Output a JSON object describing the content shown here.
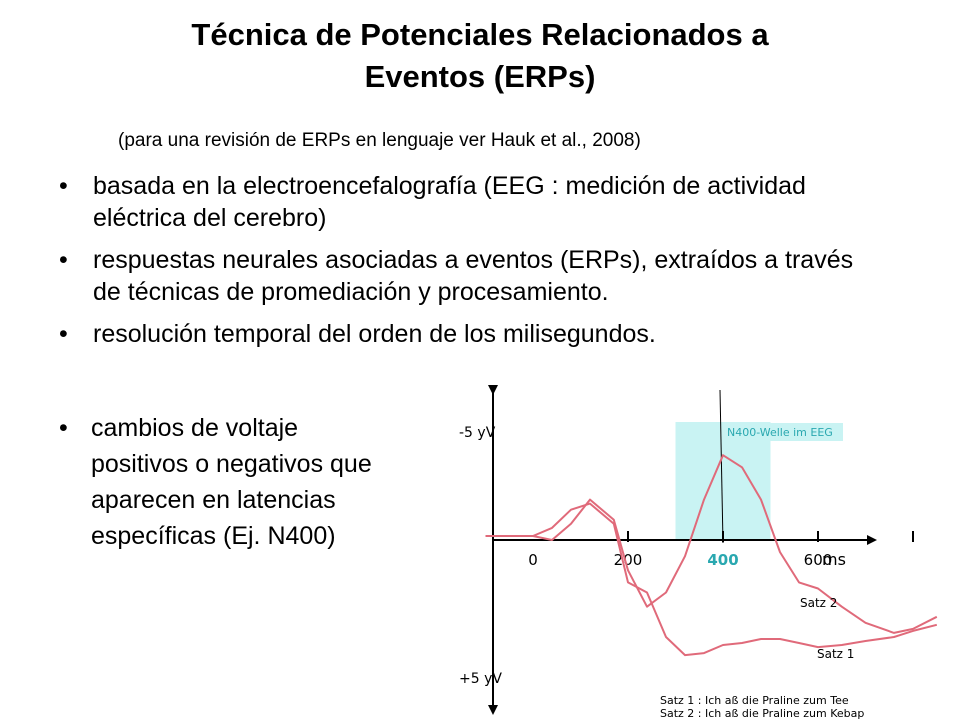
{
  "slide": {
    "title_line1": "Técnica de Potenciales Relacionados a",
    "title_line2": "Eventos (ERPs)",
    "subtitle": "(para una revisión de ERPs en lenguaje ver Hauk et al., 2008)",
    "bullets": [
      "basada en la electroencefalografía (EEG : medición de actividad eléctrica del cerebro)",
      "respuestas neurales asociadas a eventos (ERPs), extraídos a través de técnicas de promediación y procesamiento.",
      "resolución temporal del orden de los milisegundos."
    ],
    "bullet4_lines": [
      "cambios de voltaje",
      "positivos o negativos que",
      "aparecen en latencias",
      "específicas (Ej. N400)"
    ],
    "bullet_symbol": "•"
  },
  "chart_data": {
    "type": "line",
    "xlabel": "ms",
    "x_ticks": [
      "0",
      "200",
      "400",
      "600"
    ],
    "xlim": [
      -100,
      950
    ],
    "y_labels": {
      "top": "-5 yV",
      "bottom": "+5 yV"
    },
    "ylim": [
      -5,
      5
    ],
    "y_inverted": true,
    "highlight": {
      "label": "N400-Welle im EEG",
      "x_range": [
        300,
        500
      ],
      "color": "#c9f3f3"
    },
    "series": [
      {
        "name": "Satz 2",
        "color": "#e06a7a",
        "x": [
          -100,
          0,
          40,
          80,
          120,
          170,
          200,
          240,
          280,
          320,
          360,
          400,
          440,
          480,
          520,
          560,
          600,
          650,
          700,
          760,
          800,
          850
        ],
        "values": [
          -0.2,
          -0.2,
          0.0,
          -0.8,
          -2.0,
          -1.0,
          1.5,
          3.3,
          2.6,
          0.8,
          -2.0,
          -4.2,
          -3.6,
          -2.0,
          0.6,
          2.1,
          2.4,
          3.3,
          4.1,
          4.6,
          4.4,
          3.8
        ]
      },
      {
        "name": "Satz 1",
        "color": "#e06a7a",
        "x": [
          -100,
          0,
          40,
          80,
          120,
          170,
          200,
          240,
          280,
          320,
          360,
          400,
          440,
          480,
          520,
          560,
          600,
          650,
          700,
          760,
          800,
          850
        ],
        "values": [
          -0.2,
          -0.2,
          -0.6,
          -1.5,
          -1.8,
          -0.8,
          2.1,
          2.6,
          4.8,
          5.7,
          5.6,
          5.2,
          5.1,
          4.9,
          4.9,
          5.1,
          5.3,
          5.2,
          5.0,
          4.8,
          4.5,
          4.2
        ]
      }
    ],
    "legend": [
      {
        "label": "Satz 1 : Ich aß die Praline zum Tee"
      },
      {
        "label": "Satz 2 : Ich aß die Praline zum Kebap"
      }
    ],
    "colors": {
      "curve": "#e06a7a",
      "highlight_text": "#2aa8b0",
      "axis": "#000000"
    }
  }
}
